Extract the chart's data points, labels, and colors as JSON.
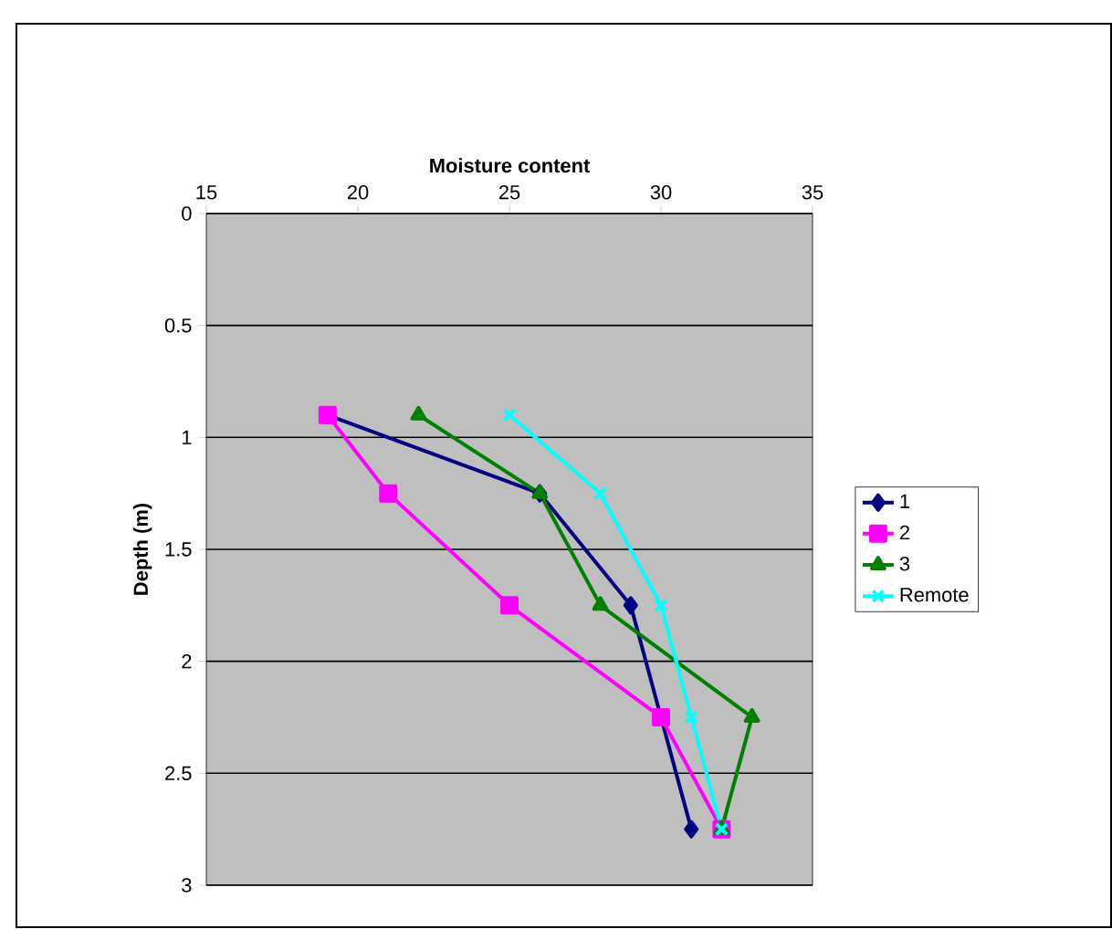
{
  "chart_data": {
    "type": "line",
    "xlabel": "Moisture content",
    "ylabel": "Depth (m)",
    "xlim": [
      15,
      35
    ],
    "xticks": [
      15,
      20,
      25,
      30,
      35
    ],
    "ylim": [
      3,
      0
    ],
    "yticks": [
      0,
      0.5,
      1,
      1.5,
      2,
      2.5,
      3
    ],
    "grid": "y",
    "legend": "right",
    "series": [
      {
        "name": "1",
        "color": "#000080",
        "marker": "diamond",
        "x": [
          19,
          26,
          29,
          30,
          31
        ],
        "values": [
          0.9,
          1.25,
          1.75,
          2.25,
          2.75
        ]
      },
      {
        "name": "2",
        "color": "#ff00ff",
        "marker": "square",
        "x": [
          19,
          21,
          25,
          30,
          32
        ],
        "values": [
          0.9,
          1.25,
          1.75,
          2.25,
          2.75
        ]
      },
      {
        "name": "3",
        "color": "#008000",
        "marker": "triangle",
        "x": [
          22,
          26,
          28,
          33,
          32
        ],
        "values": [
          0.9,
          1.25,
          1.75,
          2.25,
          2.75
        ]
      },
      {
        "name": "Remote",
        "color": "#00ffff",
        "marker": "cross",
        "x": [
          25,
          28,
          30,
          31,
          32
        ],
        "values": [
          0.9,
          1.25,
          1.75,
          2.25,
          2.75
        ]
      }
    ]
  }
}
